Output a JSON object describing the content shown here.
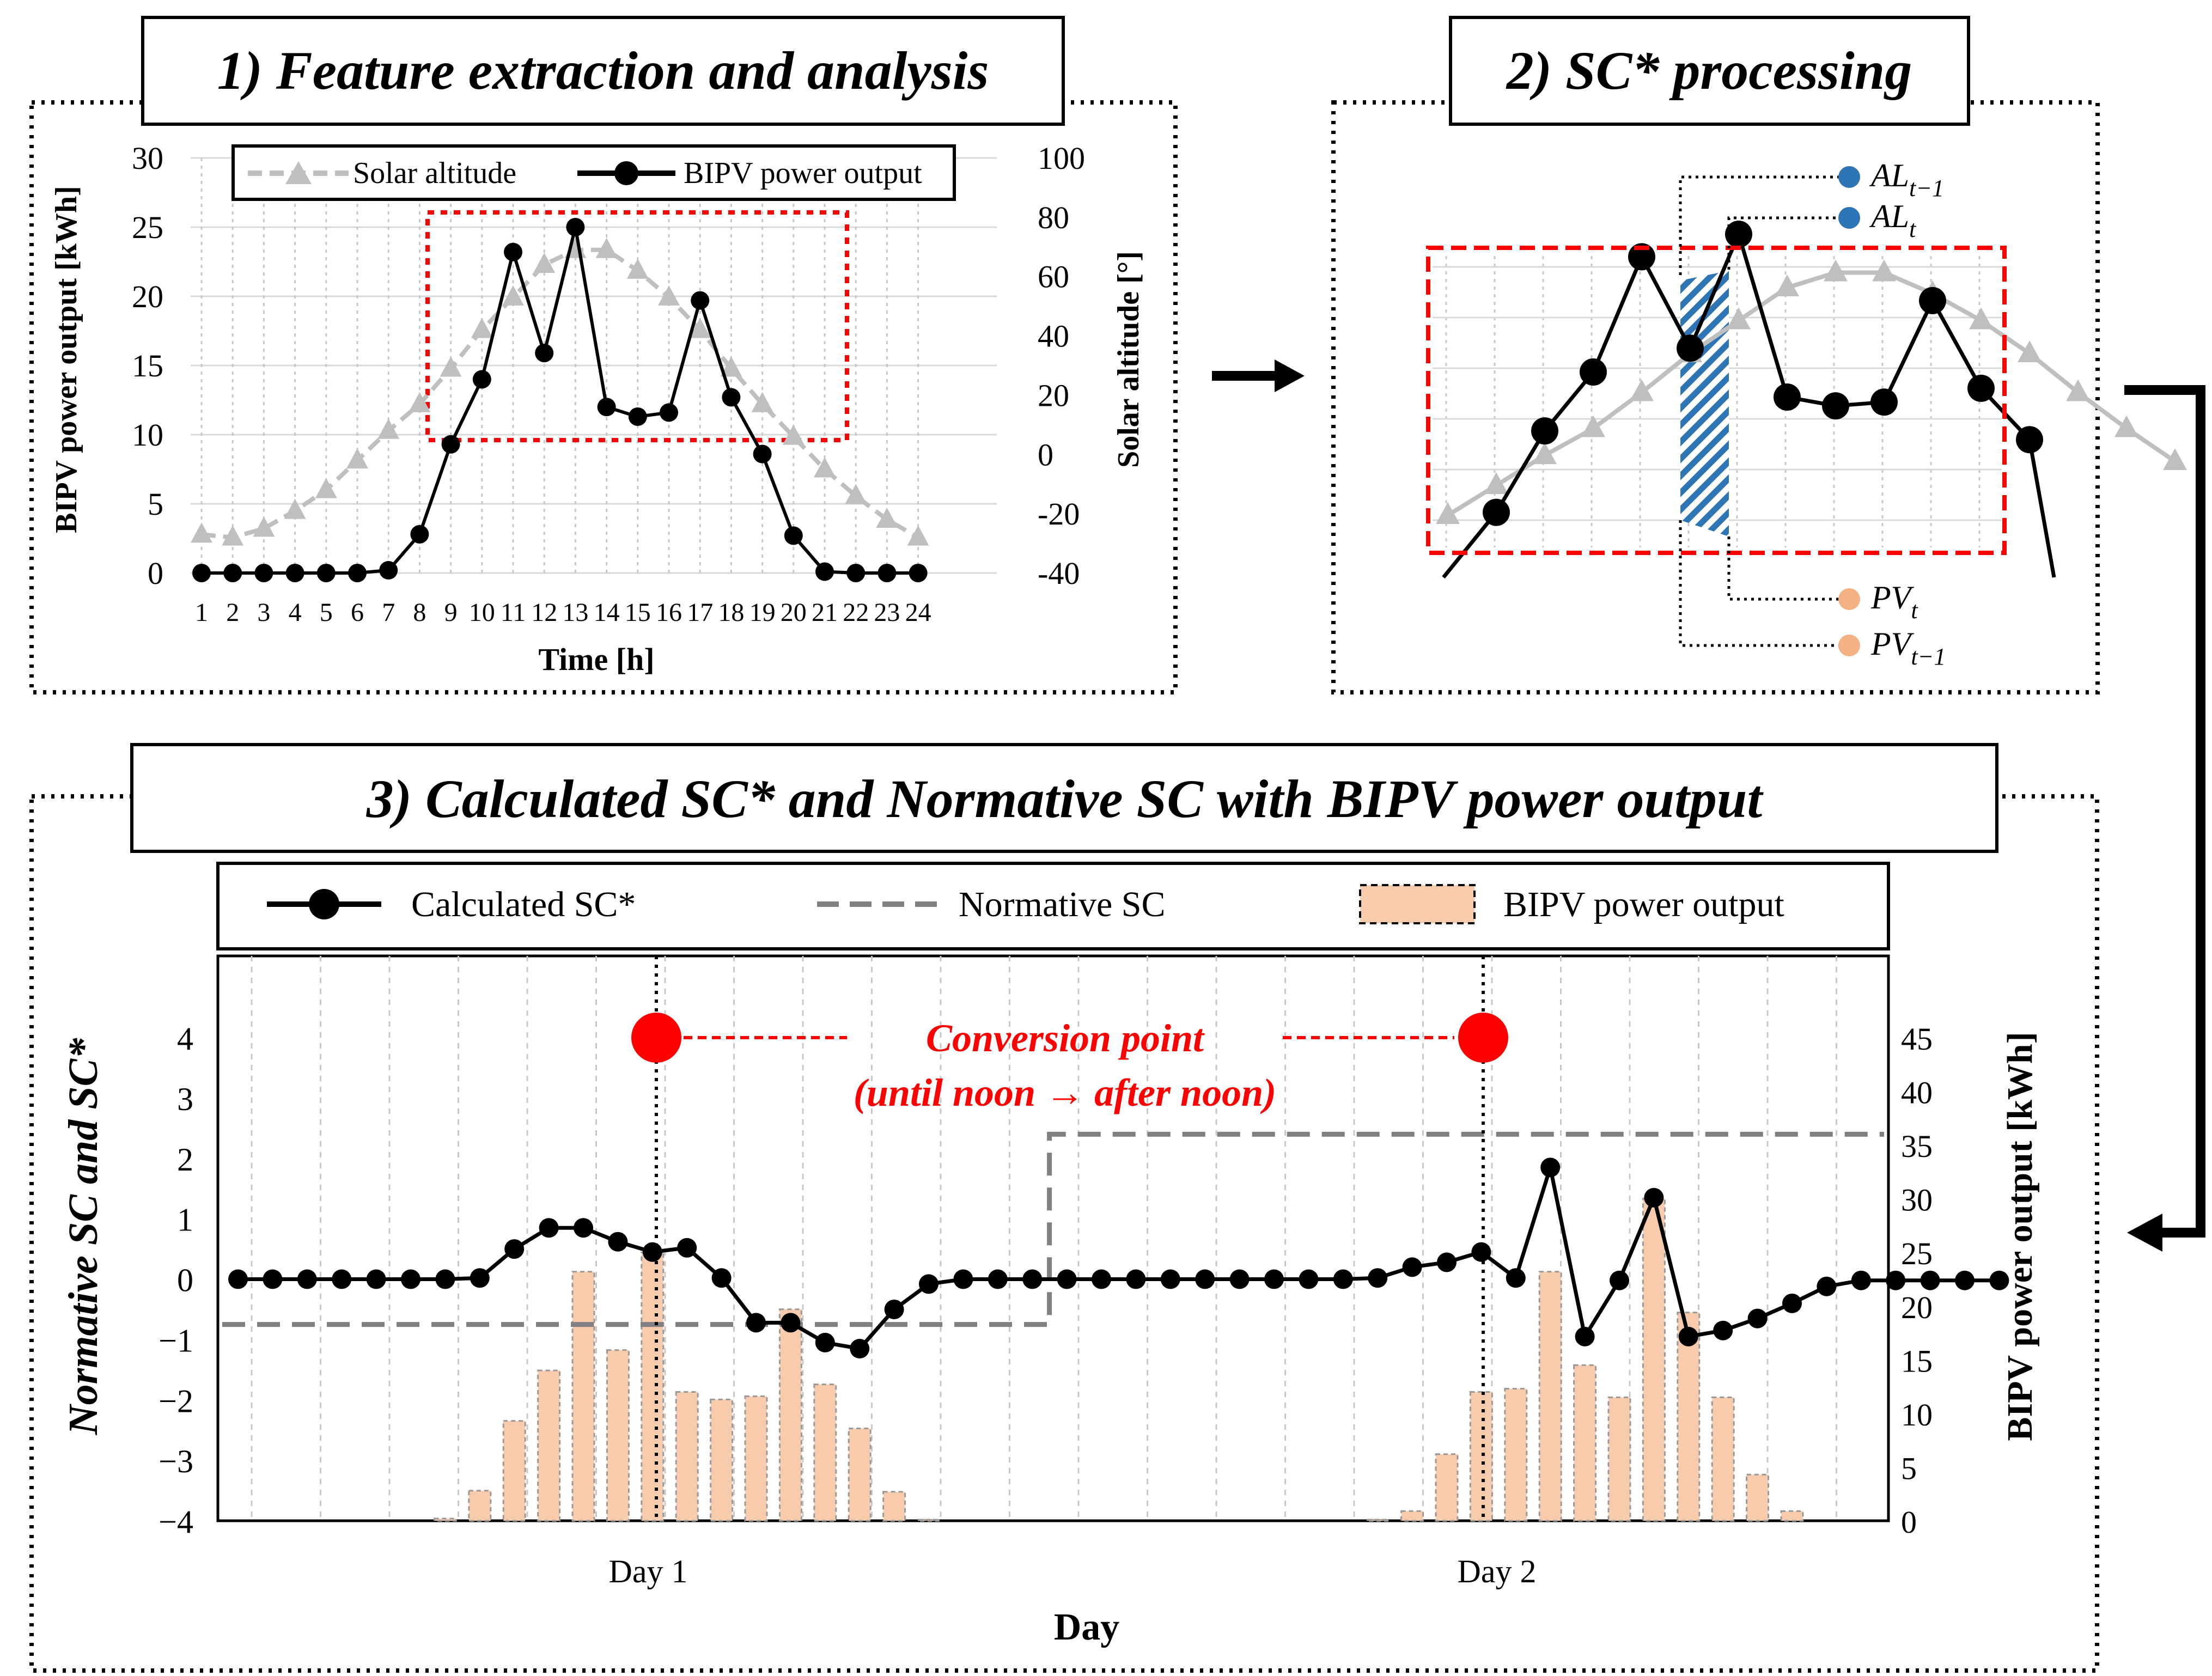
{
  "panels": {
    "p1_title": "1) Feature extraction and analysis",
    "p2_title": "2) SC* processing",
    "p3_title": "3) Calculated SC* and Normative SC with BIPV power output"
  },
  "chart_data": [
    {
      "type": "line",
      "panel": "1",
      "xlabel": "Time [h]",
      "ylabel_left": "BIPV power output [kWh]",
      "ylabel_right": "Solar altitude [°]",
      "x": [
        1,
        2,
        3,
        4,
        5,
        6,
        7,
        8,
        9,
        10,
        11,
        12,
        13,
        14,
        15,
        16,
        17,
        18,
        19,
        20,
        21,
        22,
        23,
        24
      ],
      "ylim_left": [
        0,
        30
      ],
      "yticks_left": [
        0,
        5,
        10,
        15,
        20,
        25,
        30
      ],
      "ylim_right": [
        -40,
        100
      ],
      "yticks_right": [
        -40,
        -20,
        0,
        20,
        40,
        60,
        80,
        100
      ],
      "grid": true,
      "legend_position": "top",
      "series": [
        {
          "name": "Solar altitude",
          "axis": "right",
          "color": "#bfbfbf",
          "marker": "triangle",
          "dash": true,
          "values": [
            -27,
            -28,
            -25,
            -19,
            -12,
            -2,
            8,
            17,
            29,
            42,
            53,
            64,
            69,
            69,
            62,
            53,
            42,
            29,
            17,
            6,
            -5,
            -14,
            -22,
            -28
          ]
        },
        {
          "name": "BIPV power output",
          "axis": "left",
          "color": "#000000",
          "marker": "circle",
          "values": [
            0,
            0,
            0,
            0,
            0,
            0,
            0.2,
            2.8,
            9.3,
            14,
            23.2,
            15.9,
            25,
            12,
            11.3,
            11.6,
            19.7,
            12.7,
            8.6,
            2.7,
            0.1,
            0,
            0,
            0
          ]
        }
      ]
    },
    {
      "type": "line",
      "panel": "2",
      "annotations": {
        "al_prev": "AL",
        "al_prev_sub": "t−1",
        "al_cur": "AL",
        "al_cur_sub": "t",
        "pv_cur": "PV",
        "pv_cur_sub": "t",
        "pv_prev": "PV",
        "pv_prev_sub": "t−1"
      },
      "series": [
        {
          "name": "Solar altitude",
          "color": "#bfbfbf",
          "values": [
            -12,
            -2,
            8,
            17,
            29,
            42,
            53,
            64,
            69,
            69,
            62,
            53,
            42,
            29,
            17,
            6
          ]
        },
        {
          "name": "BIPV power output",
          "color": "#000000",
          "values": [
            0.2,
            2.8,
            9.3,
            14,
            23.2,
            15.9,
            25,
            12,
            11.3,
            11.6,
            19.7,
            12.7,
            8.6
          ]
        }
      ]
    },
    {
      "type": "bar+line",
      "panel": "3",
      "xlabel": "Day",
      "ylabel_left": "Normative SC and  SC*",
      "ylabel_right": "BIPV power output [kWh]",
      "categories_labels": [
        "Day 1",
        "Day 2"
      ],
      "ylim_left": [
        -4,
        4
      ],
      "yticks_left": [
        -4,
        -3,
        -2,
        -1,
        0,
        1,
        2,
        3,
        4
      ],
      "ylim_right": [
        0,
        45
      ],
      "yticks_right": [
        0,
        5,
        10,
        15,
        20,
        25,
        30,
        35,
        40,
        45
      ],
      "legend_position": "top",
      "series": [
        {
          "name": "Calculated SC*",
          "type": "line",
          "color": "#000000",
          "values": [
            0,
            0,
            0,
            0,
            0,
            0,
            0,
            0.02,
            0.5,
            0.85,
            0.85,
            0.62,
            0.45,
            0.52,
            0.02,
            -0.72,
            -0.72,
            -1.05,
            -1.15,
            -0.5,
            -0.08,
            0,
            0,
            0,
            0,
            0,
            0,
            0,
            0,
            0,
            0,
            0,
            0,
            0.02,
            0.2,
            0.28,
            0.45,
            0.02,
            1.85,
            -0.95,
            -0.02,
            1.35,
            -0.95,
            -0.85,
            -0.65,
            -0.4,
            -0.12,
            -0.02,
            -0.02,
            -0.02,
            -0.02,
            -0.02
          ]
        },
        {
          "name": "Normative SC",
          "type": "step",
          "color": "#808080",
          "dash": true,
          "segments": [
            {
              "from_index": 0,
              "to_index": 24,
              "value": -0.75
            },
            {
              "from_index": 24,
              "to_index": 51,
              "value": 2.4
            }
          ]
        },
        {
          "name": "BIPV power output",
          "type": "bar",
          "color": "#f8cbad",
          "values": [
            0,
            0,
            0,
            0,
            0,
            0,
            0.2,
            2.8,
            9.3,
            14,
            23.2,
            15.9,
            25,
            12,
            11.3,
            11.6,
            19.7,
            12.7,
            8.6,
            2.7,
            0.1,
            0,
            0,
            0,
            0,
            0,
            0,
            0,
            0,
            0,
            0,
            0,
            0,
            0.1,
            0.9,
            6.2,
            12.0,
            12.3,
            23.2,
            14.5,
            11.5,
            30.0,
            19.4,
            11.5,
            4.3,
            0.9,
            0,
            0,
            0,
            0,
            0,
            0
          ]
        }
      ],
      "annotation": {
        "title": "Conversion point",
        "subtitle": "(until noon → after noon)",
        "color": "#ff0000"
      }
    }
  ]
}
